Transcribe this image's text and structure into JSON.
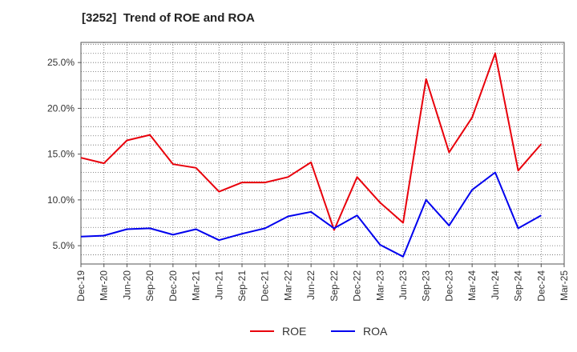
{
  "chart_data": {
    "type": "line",
    "title": "[3252]  Trend of ROE and ROA",
    "categories": [
      "Dec-19",
      "Mar-20",
      "Jun-20",
      "Sep-20",
      "Dec-20",
      "Mar-21",
      "Jun-21",
      "Sep-21",
      "Dec-21",
      "Mar-22",
      "Jun-22",
      "Sep-22",
      "Dec-22",
      "Mar-23",
      "Jun-23",
      "Sep-23",
      "Dec-23",
      "Mar-24",
      "Jun-24",
      "Sep-24",
      "Dec-24",
      "Mar-25"
    ],
    "series": [
      {
        "name": "ROE",
        "color": "#e8000b",
        "values": [
          14.6,
          14.0,
          16.5,
          17.1,
          13.9,
          13.5,
          10.9,
          11.9,
          11.9,
          12.5,
          14.1,
          6.7,
          12.5,
          9.7,
          7.5,
          23.2,
          15.2,
          19.0,
          26.0,
          13.2,
          16.1,
          null
        ]
      },
      {
        "name": "ROA",
        "color": "#0000ee",
        "values": [
          6.0,
          6.1,
          6.8,
          6.9,
          6.2,
          6.8,
          5.6,
          6.3,
          6.9,
          8.2,
          8.7,
          6.9,
          8.3,
          5.1,
          3.8,
          10.0,
          7.2,
          11.1,
          13.0,
          6.9,
          8.3,
          null
        ]
      }
    ],
    "yticks": [
      "5.0%",
      "10.0%",
      "15.0%",
      "20.0%",
      "25.0%"
    ],
    "ytick_values": [
      5,
      10,
      15,
      20,
      25
    ],
    "ylim": [
      3,
      27.2
    ],
    "grid": true,
    "legend_position": "bottom-center"
  }
}
